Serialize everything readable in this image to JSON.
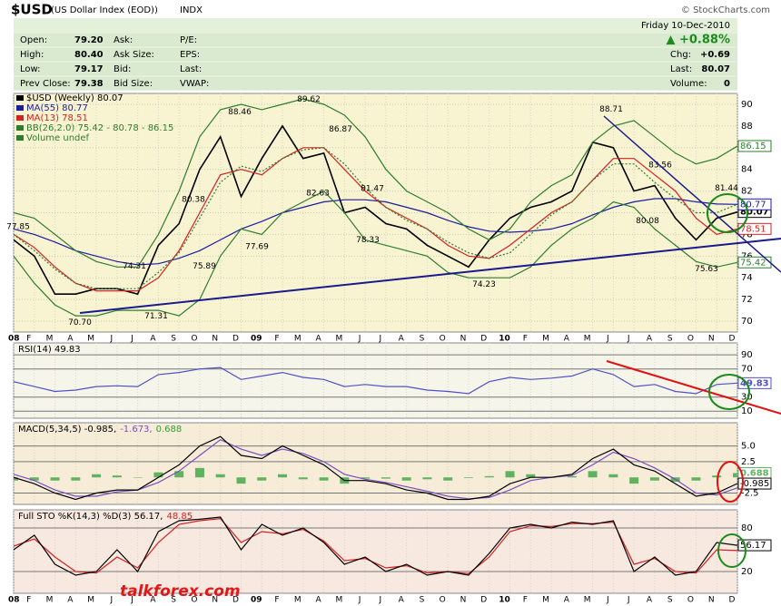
{
  "header": {
    "symbol": "$USD",
    "name": "(US Dollar Index (EOD))",
    "exchange": "INDX",
    "copyright": "© StockCharts.com"
  },
  "quote": {
    "left": [
      {
        "label": "Open:",
        "value": "79.20"
      },
      {
        "label": "High:",
        "value": "80.40"
      },
      {
        "label": "Low:",
        "value": "79.17"
      },
      {
        "label": "Prev Close:",
        "value": "79.38"
      }
    ],
    "middle": [
      "Ask:",
      "Ask Size:",
      "Bid:",
      "Bid Size:"
    ],
    "right": [
      "P/E:",
      "EPS:",
      "Last:",
      "VWAP:"
    ],
    "day": "Friday",
    "date": "10-Dec-2010",
    "change_pct": "▲ +0.88%",
    "summary": [
      {
        "label": "Chg:",
        "value": "+0.69"
      },
      {
        "label": "Last:",
        "value": "80.07"
      },
      {
        "label": "Volume:",
        "value": "0"
      }
    ]
  },
  "watermark": "talkforex.com",
  "chart_data": [
    {
      "type": "line",
      "background": "#f8f4d2",
      "categories": [
        "08",
        "F",
        "M",
        "A",
        "M",
        "J",
        "J",
        "A",
        "S",
        "O",
        "N",
        "D",
        "09",
        "F",
        "M",
        "A",
        "M",
        "J",
        "J",
        "A",
        "S",
        "O",
        "N",
        "D",
        "10",
        "F",
        "M",
        "A",
        "M",
        "J",
        "J",
        "A",
        "S",
        "O",
        "N",
        "D"
      ],
      "ylim": [
        69,
        91
      ],
      "yticks": [
        70,
        72,
        74,
        76,
        78,
        80,
        82,
        84,
        86,
        88,
        90
      ],
      "series": [
        {
          "name": "$USD (Weekly) 80.07",
          "color": "#000000",
          "box": true,
          "values": [
            77.5,
            76,
            72.5,
            72.5,
            73,
            73,
            72.5,
            77,
            79,
            84,
            87,
            81.5,
            85,
            88,
            85,
            85.5,
            80,
            80.5,
            79,
            78.5,
            77,
            76,
            75,
            77.5,
            79.5,
            80.5,
            81,
            82,
            86.5,
            86,
            82,
            82.5,
            79.5,
            77.5,
            79.5,
            80.07
          ]
        },
        {
          "name": "MA(55) 80.77",
          "color": "#1c1c9c",
          "box": true,
          "values": [
            78.5,
            78,
            77.3,
            76.5,
            76,
            75.5,
            75.2,
            75.3,
            75.8,
            76.5,
            77.5,
            78.5,
            79.2,
            80,
            80.5,
            81,
            81.2,
            81.2,
            81,
            80.5,
            80,
            79.3,
            78.7,
            78.3,
            78.2,
            78.3,
            78.5,
            79,
            79.8,
            80.5,
            81,
            81.3,
            81.3,
            81,
            80.8,
            80.77
          ]
        },
        {
          "name": "MA(13) 78.51",
          "color": "#d42020",
          "box": true,
          "values": [
            78,
            76.8,
            75,
            73.5,
            72.8,
            72.8,
            72.8,
            74,
            76.5,
            80,
            83.5,
            84,
            83.5,
            85,
            86,
            86,
            84,
            82,
            80.5,
            79.5,
            78.5,
            77,
            76,
            75.8,
            77,
            78.5,
            80,
            81,
            83,
            85,
            85,
            83.5,
            82,
            79.5,
            78,
            78.51
          ]
        },
        {
          "name": "BB(26,2.0) 75.42 - 80.78 - 86.15",
          "color": "#2e7d2e",
          "box": true,
          "values": [
            80,
            79.5,
            78,
            76.5,
            75.5,
            75,
            75,
            78,
            82,
            87,
            89.5,
            90,
            89.5,
            90,
            90.5,
            90,
            89,
            87,
            84,
            82,
            81,
            80,
            78.5,
            77.5,
            78.5,
            81,
            82.5,
            83.5,
            86.5,
            88,
            88.5,
            87,
            85.5,
            84.5,
            85,
            86.15
          ]
        },
        {
          "color": "#2e7d2e",
          "style": "dotted",
          "values": [
            78,
            76.5,
            74.8,
            73.5,
            73,
            73,
            73,
            74.5,
            76.3,
            79.5,
            82.8,
            84.3,
            83.8,
            85,
            85.8,
            86,
            84.5,
            82.3,
            80.5,
            79.3,
            78.5,
            77.3,
            76.3,
            75.8,
            76.3,
            78,
            79.8,
            81,
            83,
            84.5,
            84.5,
            82.8,
            81.3,
            80,
            80,
            80.78
          ]
        },
        {
          "color": "#2e7d2e",
          "box": true,
          "values": [
            76,
            73.5,
            71.5,
            70.5,
            70.5,
            71,
            71,
            71,
            70.5,
            72,
            76,
            78.5,
            78,
            80,
            81,
            82,
            80,
            77.5,
            77,
            76.5,
            76,
            74.5,
            74,
            74,
            74,
            75,
            77,
            78.5,
            79.5,
            81,
            80.5,
            78.5,
            77,
            75.5,
            75,
            75.42
          ]
        }
      ],
      "legend_notes": [
        "Volume undef"
      ],
      "annotations": [
        {
          "value": 77.85,
          "label": "77.85"
        },
        {
          "value": 70.7,
          "label": "70.70"
        },
        {
          "value": 74.31,
          "label": "74.31"
        },
        {
          "value": 71.31,
          "label": "71.31"
        },
        {
          "value": 75.89,
          "label": "75.89"
        },
        {
          "value": 80.38,
          "label": "80.38"
        },
        {
          "value": 88.46,
          "label": "88.46"
        },
        {
          "value": 77.69,
          "label": "77.69"
        },
        {
          "value": 89.62,
          "label": "89.62"
        },
        {
          "value": 86.87,
          "label": "86.87"
        },
        {
          "value": 82.63,
          "label": "82.63"
        },
        {
          "value": 81.47,
          "label": "81.47"
        },
        {
          "value": 78.33,
          "label": "78.33"
        },
        {
          "value": 74.23,
          "label": "74.23"
        },
        {
          "value": 88.71,
          "label": "88.71"
        },
        {
          "value": 83.56,
          "label": "83.56"
        },
        {
          "value": 80.08,
          "label": "80.08"
        },
        {
          "value": 75.63,
          "label": "75.63"
        },
        {
          "value": 81.44,
          "label": "81.44"
        }
      ]
    },
    {
      "type": "line",
      "background": "#f6f5ea",
      "title_parts": [
        {
          "text": "RSI(14) 49.83",
          "color": "#000000"
        }
      ],
      "ylim": [
        0,
        107
      ],
      "yticks": [
        10,
        30,
        70,
        90
      ],
      "series": [
        {
          "color": "#5050c8",
          "box": true,
          "values": [
            52,
            45,
            38,
            40,
            45,
            46,
            45,
            62,
            65,
            70,
            72,
            55,
            60,
            65,
            58,
            55,
            45,
            48,
            45,
            45,
            40,
            38,
            35,
            52,
            58,
            55,
            57,
            60,
            70,
            62,
            45,
            48,
            38,
            35,
            48,
            49.83
          ]
        }
      ]
    },
    {
      "type": "line",
      "background": "#f6ecd8",
      "title_parts": [
        {
          "text": "MACD(5,34,5) -0.985,",
          "color": "#000000"
        },
        {
          "text": "-1.673,",
          "color": "#7a4fc0"
        },
        {
          "text": "0.688",
          "color": "#3a9a3a"
        }
      ],
      "ylim": [
        -4.3,
        8.7
      ],
      "yticks": [
        {
          "value": 5,
          "label": "5.0"
        },
        2.5,
        -2.5
      ],
      "series": [
        {
          "color": "#5fb35f",
          "style": "bar",
          "box": true,
          "values": [
            -0.5,
            -0.5,
            -0.5,
            -0.5,
            0.5,
            0.3,
            0,
            0.8,
            1,
            1.5,
            0.5,
            -1,
            -0.5,
            0.5,
            -0.3,
            -0.5,
            -1,
            -0.2,
            -0.2,
            -0.5,
            -0.3,
            -0.5,
            -0.1,
            0.2,
            1,
            0.5,
            0,
            0.2,
            1,
            0.5,
            -1,
            -0.5,
            -0.7,
            -0.5,
            0.3,
            0.688
          ]
        },
        {
          "color": "#7a4fc0",
          "values": [
            0.5,
            -0.5,
            -2,
            -3,
            -3,
            -2.3,
            -2,
            -0.8,
            1,
            3.5,
            6,
            4.5,
            3.5,
            4.5,
            3.8,
            2.5,
            0.5,
            -0.3,
            -0.8,
            -1.5,
            -2.2,
            -3,
            -3.4,
            -3.2,
            -2,
            -0.5,
            0,
            0.3,
            2,
            4,
            3,
            1.5,
            -0.3,
            -2.5,
            -2.8,
            -1.673
          ]
        },
        {
          "color": "#000000",
          "box": true,
          "values": [
            0,
            -1,
            -2.5,
            -3.5,
            -2.5,
            -2,
            -2,
            0,
            2,
            5,
            6.5,
            3.5,
            3,
            5,
            3.5,
            2,
            -0.5,
            -0.5,
            -1,
            -2,
            -2.5,
            -3.5,
            -3.5,
            -3,
            -1,
            0,
            0,
            0.5,
            3,
            4.5,
            2,
            1,
            -1,
            -3,
            -2.5,
            -0.985
          ]
        }
      ]
    },
    {
      "type": "line",
      "background": "#f8e9e0",
      "title_parts": [
        {
          "text": "Full STO %K(14,3) %D(3) 56.17,",
          "color": "#000000"
        },
        {
          "text": "48.85",
          "color": "#d42020"
        }
      ],
      "categories": [
        "08",
        "F",
        "M",
        "A",
        "M",
        "J",
        "J",
        "A",
        "S",
        "O",
        "N",
        "D",
        "09",
        "F",
        "M",
        "A",
        "M",
        "J",
        "J",
        "A",
        "S",
        "O",
        "N",
        "D",
        "10",
        "F",
        "M",
        "A",
        "M",
        "J",
        "J",
        "A",
        "S",
        "O",
        "N",
        "D"
      ],
      "ylim": [
        -10,
        105
      ],
      "yticks": [
        20,
        80
      ],
      "series": [
        {
          "color": "#d42020",
          "values": [
            55,
            65,
            40,
            20,
            18,
            40,
            25,
            60,
            85,
            90,
            93,
            60,
            75,
            72,
            78,
            62,
            35,
            38,
            25,
            28,
            18,
            20,
            17,
            40,
            75,
            83,
            82,
            86,
            86,
            88,
            30,
            38,
            20,
            18,
            50,
            48.85
          ]
        },
        {
          "color": "#000000",
          "box": true,
          "values": [
            50,
            70,
            30,
            15,
            20,
            50,
            20,
            75,
            90,
            92,
            95,
            50,
            85,
            70,
            80,
            60,
            30,
            40,
            20,
            30,
            15,
            20,
            15,
            45,
            80,
            85,
            80,
            88,
            85,
            90,
            20,
            40,
            15,
            20,
            60,
            56.17
          ]
        }
      ]
    }
  ]
}
